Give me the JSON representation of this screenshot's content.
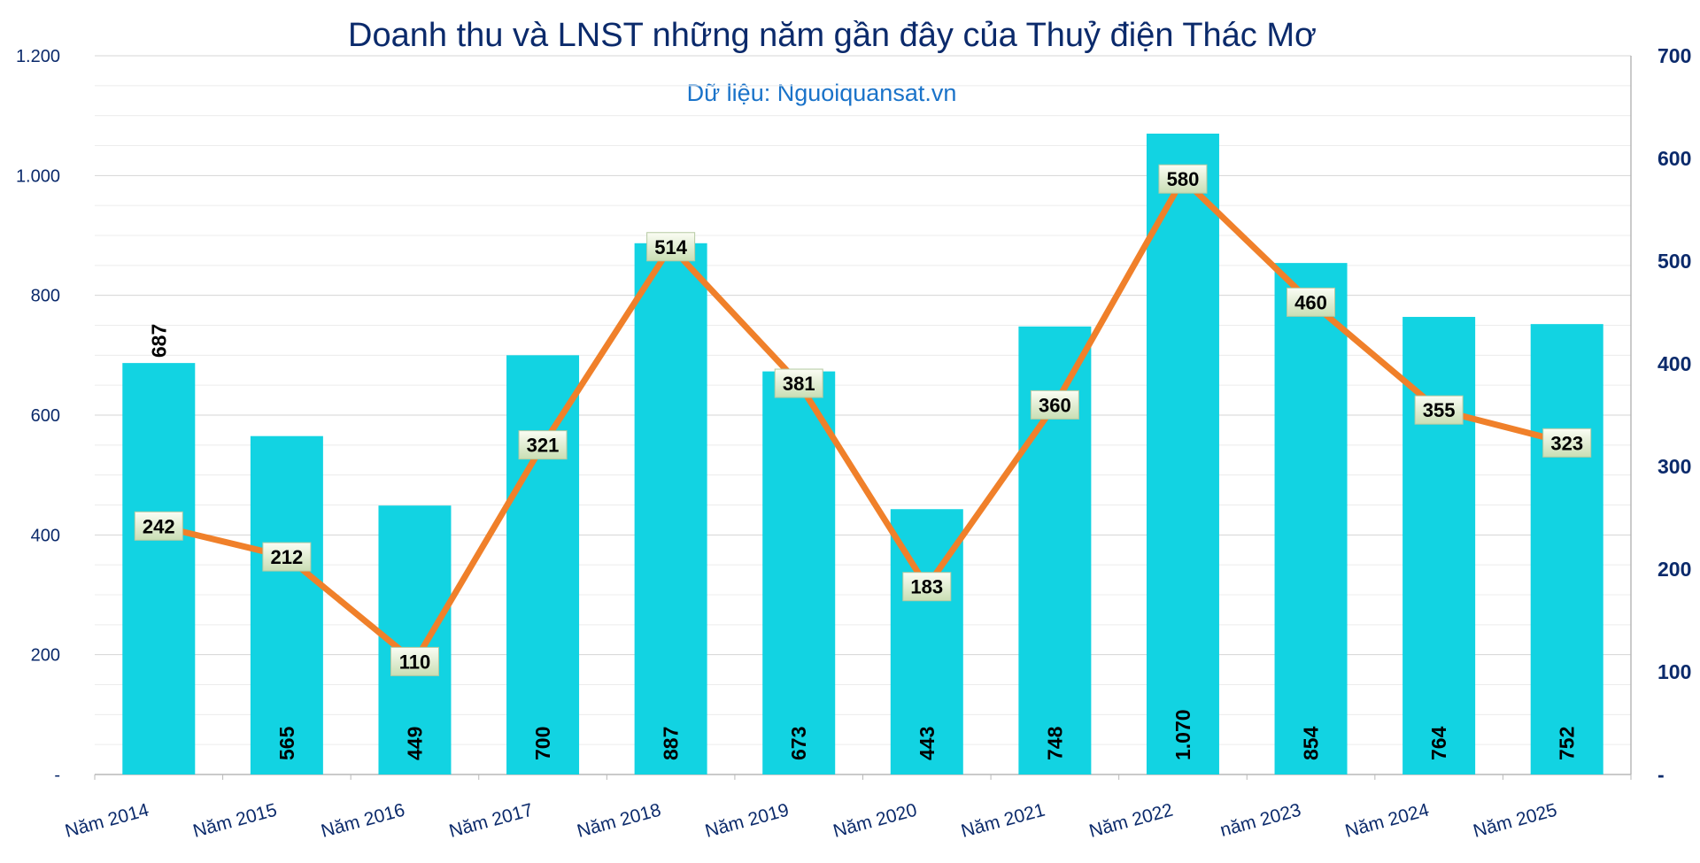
{
  "chart_data": {
    "type": "bar",
    "title": "Doanh thu và LNST những năm gần đây của Thuỷ điện Thác Mơ",
    "subtitle": "Dữ liệu: Nguoiquansat.vn",
    "categories": [
      "Năm 2014",
      "Năm 2015",
      "Năm 2016",
      "Năm 2017",
      "Năm 2018",
      "Năm 2019",
      "Năm 2020",
      "Năm 2021",
      "Năm 2022",
      "năm 2023",
      "Năm 2024",
      "Năm 2025"
    ],
    "series": [
      {
        "type": "bar",
        "axis": "left",
        "color": "#12d3e2",
        "values": [
          687,
          565,
          449,
          700,
          887,
          673,
          443,
          748,
          1070,
          854,
          764,
          752
        ],
        "labels": [
          "687",
          "565",
          "449",
          "700",
          "887",
          "673",
          "443",
          "748",
          "1.070",
          "854",
          "764",
          "752"
        ]
      },
      {
        "type": "line",
        "axis": "right",
        "color": "#f0802a",
        "values": [
          242,
          212,
          110,
          321,
          514,
          381,
          183,
          360,
          580,
          460,
          355,
          323
        ],
        "labels": [
          "242",
          "212",
          "110",
          "321",
          "514",
          "381",
          "183",
          "360",
          "580",
          "460",
          "355",
          "323"
        ]
      }
    ],
    "y_left": {
      "min": 0,
      "max": 1200,
      "ticks": [
        0,
        200,
        400,
        600,
        800,
        1000,
        1200
      ],
      "tick_labels": [
        "-",
        "200",
        "400",
        "600",
        "800",
        "1.000",
        "1.200"
      ]
    },
    "y_right": {
      "min": 0,
      "max": 700,
      "ticks": [
        0,
        100,
        200,
        300,
        400,
        500,
        600,
        700
      ],
      "tick_labels": [
        "-",
        "100",
        "200",
        "300",
        "400",
        "500",
        "600",
        "700"
      ]
    },
    "grid": true,
    "legend": "none"
  }
}
